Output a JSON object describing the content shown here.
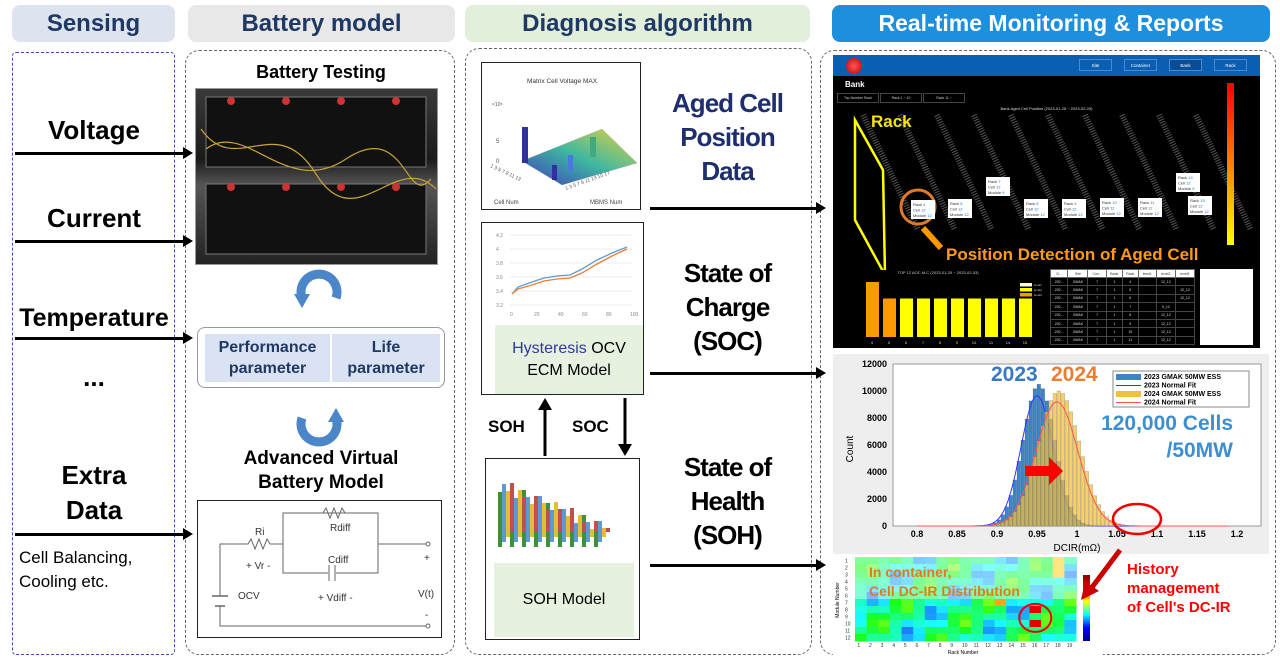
{
  "headers": {
    "sensing": "Sensing",
    "battery_model": "Battery model",
    "diagnosis": "Diagnosis algorithm",
    "monitoring": "Real-time Monitoring & Reports"
  },
  "sensing": {
    "items": [
      "Voltage",
      "Current",
      "Temperature",
      "...",
      "Extra",
      "Data"
    ],
    "note": [
      "Cell Balancing,",
      "Cooling etc."
    ]
  },
  "battery": {
    "testing_title": "Battery Testing",
    "performance": [
      "Performance",
      "parameter"
    ],
    "life": [
      "Life",
      "parameter"
    ],
    "virtual_title": [
      "Advanced Virtual",
      "Battery Model"
    ],
    "circuit": {
      "ri": "Ri",
      "vr": "+  Vr  -",
      "rdiff": "Rdiff",
      "cdiff": "Cdiff",
      "vdiff": "+    Vdiff    -",
      "ocv": "OCV",
      "vt": "V(t)",
      "plus": "+",
      "minus": "-"
    }
  },
  "diagnosis": {
    "chart1": {
      "title": "Matrix Cell Voltage MAX",
      "exp": "×10⁵",
      "yticks": [
        "5",
        "0"
      ],
      "xlabel": "Cell Num",
      "ylabel": "MBMS Num",
      "cell_ticks": "1 3 5 7 9 11 13",
      "mbms_ticks": "1 3 5 7 9 11 13 15 17"
    },
    "chart2": {
      "yticks": [
        "4.2",
        "4",
        "3.8",
        "3.6",
        "3.4",
        "3.2"
      ],
      "xticks": [
        "0",
        "20",
        "40",
        "60",
        "80",
        "100"
      ]
    },
    "ecm_label_accent": "Hysteresis",
    "ecm_label_rest": " OCV",
    "ecm_label_2": "ECM Model",
    "soh_model": "SOH Model",
    "loop_soh": "SOH",
    "loop_soc": "SOC",
    "aged": [
      "Aged Cell",
      "Position",
      "Data"
    ],
    "soc": [
      "State of",
      "Charge",
      "(SOC)"
    ],
    "soh": [
      "State of",
      "Health",
      "(SOH)"
    ],
    "colors": {
      "navy": "#1f2e6e",
      "green_bg": "#e6f1e0",
      "accent": "#2e3a9e"
    }
  },
  "monitoring": {
    "nav": [
      "Site",
      "Container",
      "Bank",
      "Rack"
    ],
    "active_nav": "Bank",
    "page_title": "Bank",
    "tabs": [
      "Top Number Rack",
      "Rack 1 ~ 10",
      "Rack 11 ~"
    ],
    "plot_title": "Bank Aged Cell Position (2023-01-25 ~ 2023-02-03)",
    "rack_label": "Rack",
    "position_label": "Position Detection of Aged Cell",
    "callouts": [
      {
        "rack": "4",
        "cell": "12",
        "module": "12"
      },
      {
        "rack": "5",
        "cell": "12",
        "module": "12"
      },
      {
        "rack": "7",
        "cell": "12",
        "module": "9"
      },
      {
        "rack": "8",
        "cell": "12",
        "module": "12"
      },
      {
        "rack": "9",
        "cell": "12",
        "module": "12"
      },
      {
        "rack": "10",
        "cell": "12",
        "module": "12"
      },
      {
        "rack": "11",
        "cell": "12",
        "module": "12"
      },
      {
        "rack": "14",
        "cell": "12",
        "module": "9"
      },
      {
        "rack": "15",
        "cell": "12",
        "module": "12"
      }
    ],
    "bar_title": "TOP 12 AOC M-C (2023-01-25 ~ 2023-02-03)",
    "bar_chart": {
      "categories": [
        "4",
        "5",
        "6",
        "7",
        "8",
        "9",
        "10",
        "11",
        "14",
        "15"
      ],
      "values": [
        10,
        7,
        7,
        7,
        7,
        7,
        7,
        7,
        7,
        7
      ],
      "colors": [
        "#ff9900",
        "#ff9900",
        "#ffff00",
        "#ffff00",
        "#ffff00",
        "#ffff00",
        "#ffff00",
        "#ffff00",
        "#ffff00",
        "#ffff00"
      ],
      "legend": [
        "level1",
        "level2",
        "level3"
      ]
    },
    "table": {
      "headers": [
        "D...",
        "Site",
        "Con...",
        "Bank",
        "Rack",
        "level1",
        "level2",
        "level3"
      ],
      "rows": [
        [
          "202...",
          "GMAK",
          "7",
          "1",
          "4",
          "",
          "12_12",
          ""
        ],
        [
          "202...",
          "GMAK",
          "7",
          "1",
          "5",
          "",
          "",
          "12_12"
        ],
        [
          "202...",
          "GMAK",
          "7",
          "1",
          "6",
          "",
          "",
          "12_12"
        ],
        [
          "202...",
          "GMAK",
          "7",
          "1",
          "7",
          "",
          "9_12",
          ""
        ],
        [
          "202...",
          "GMAK",
          "7",
          "1",
          "8",
          "",
          "12_12",
          ""
        ],
        [
          "202...",
          "GMAK",
          "7",
          "1",
          "9",
          "",
          "12_12",
          ""
        ],
        [
          "202...",
          "GMAK",
          "7",
          "1",
          "10",
          "",
          "12_12",
          ""
        ],
        [
          "202...",
          "GMAK",
          "7",
          "1",
          "11",
          "",
          "12_12",
          ""
        ]
      ]
    },
    "histogram": {
      "type": "bar",
      "xlabel": "DCIR(mΩ)",
      "ylabel": "Count",
      "xticks": [
        "0.8",
        "0.85",
        "0.9",
        "0.95",
        "1",
        "1.05",
        "1.1",
        "1.15",
        "1.2"
      ],
      "yticks": [
        "0",
        "2000",
        "4000",
        "6000",
        "8000",
        "10000",
        "12000"
      ],
      "xlim": [
        0.77,
        1.23
      ],
      "ylim": [
        0,
        12000
      ],
      "series": [
        {
          "name": "2023 GMAK 50MW ESS",
          "mean": 0.95,
          "sd": 0.02,
          "peak": 10500,
          "color": "#3d85c6"
        },
        {
          "name": "2024 GMAK 50MW ESS",
          "mean": 0.975,
          "sd": 0.026,
          "peak": 10000,
          "color": "#f0c040"
        }
      ],
      "fits": [
        "2023 Normal Fit",
        "2024 Normal Fit"
      ],
      "label_2023": "2023",
      "label_2024": "2024",
      "cells_label": [
        "120,000 Cells",
        "/50MW"
      ]
    },
    "heatmap": {
      "title": [
        "In container,",
        "Cell DC-IR Distribution"
      ],
      "xlabel": "Rack Number",
      "ylabel": "Module Number",
      "xticks": [
        "1",
        "2",
        "3",
        "4",
        "5",
        "6",
        "7",
        "8",
        "9",
        "10",
        "11",
        "12",
        "13",
        "14",
        "15",
        "16",
        "17",
        "18",
        "19"
      ],
      "yticks": [
        "1",
        "2",
        "3",
        "4",
        "5",
        "6",
        "7",
        "8",
        "9",
        "10",
        "11",
        "12"
      ]
    },
    "history": [
      "History",
      "management",
      "of Cell's DC-IR"
    ]
  }
}
